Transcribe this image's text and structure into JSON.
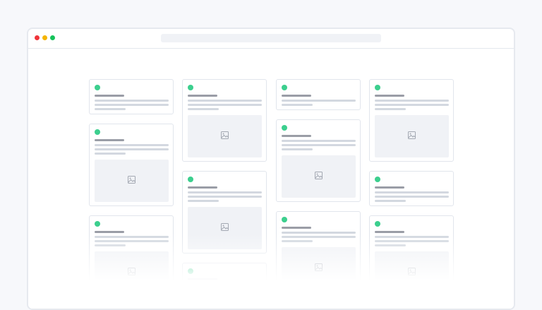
{
  "window": {
    "controls": [
      {
        "name": "close",
        "color": "#f0343a"
      },
      {
        "name": "minimize",
        "color": "#f5b400"
      },
      {
        "name": "maximize",
        "color": "#16c25a"
      }
    ]
  },
  "colors": {
    "status_dot": "#3ccf8e",
    "background": "#f7f8fb",
    "title_bar": "#9a9da6",
    "text_line": "#d3d8e0",
    "image_placeholder": "#f0f2f6"
  },
  "columns": [
    [
      {
        "lines": 3,
        "image": false
      },
      {
        "lines": 3,
        "image": true
      },
      {
        "lines": 3,
        "image": true
      }
    ],
    [
      {
        "lines": 3,
        "image": true
      },
      {
        "lines": 3,
        "image": true
      },
      {
        "lines": 3,
        "image": false
      }
    ],
    [
      {
        "lines": 2,
        "image": false
      },
      {
        "lines": 3,
        "image": true
      },
      {
        "lines": 3,
        "image": true
      }
    ],
    [
      {
        "lines": 3,
        "image": true
      },
      {
        "lines": 3,
        "image": false
      },
      {
        "lines": 3,
        "image": true
      }
    ]
  ]
}
